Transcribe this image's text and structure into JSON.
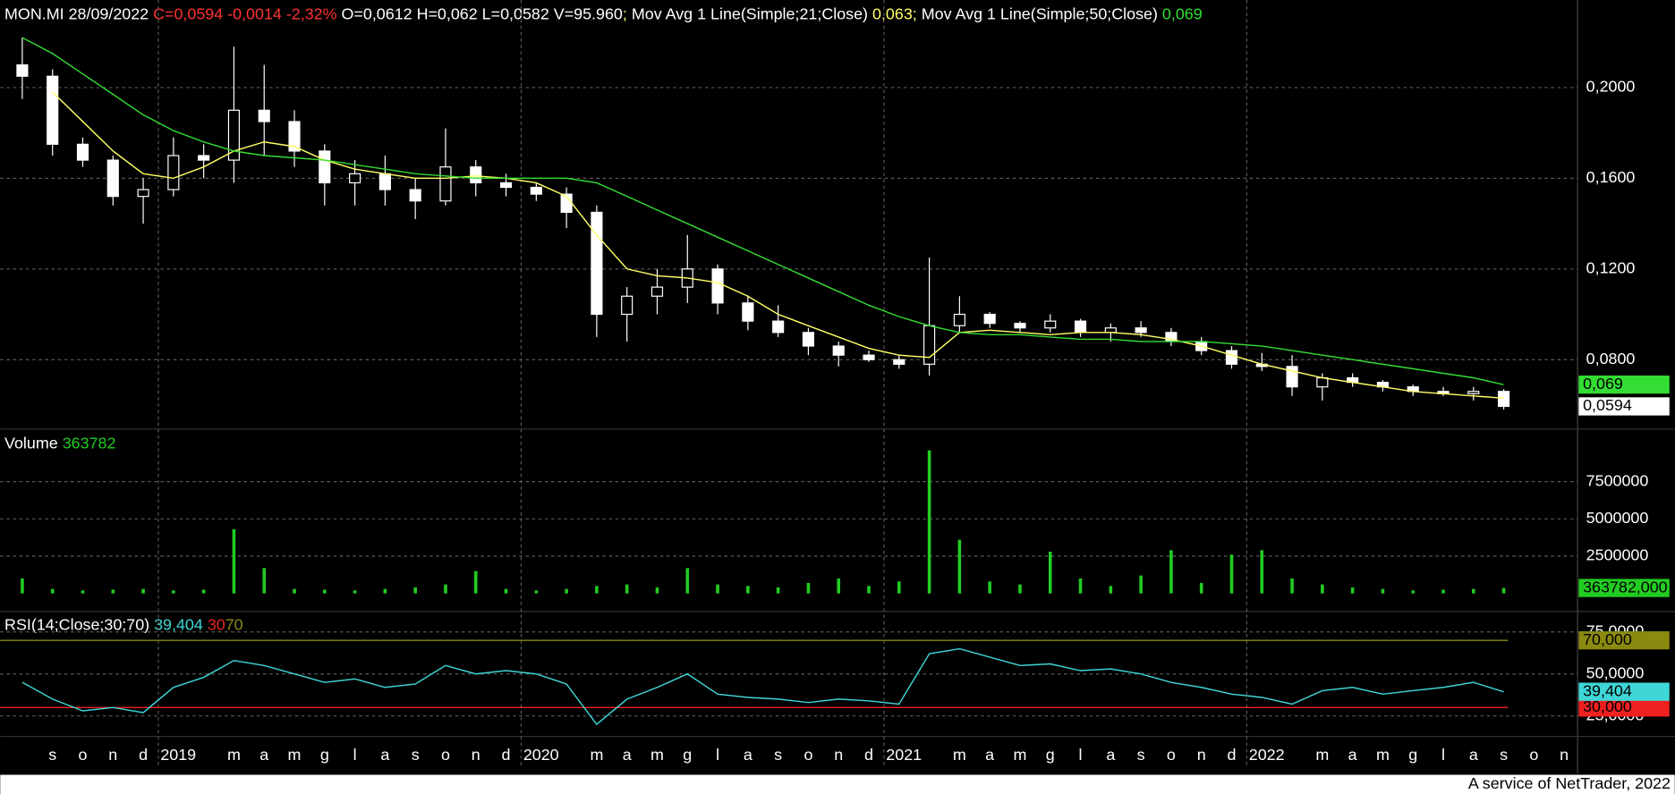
{
  "header": {
    "symbol_date": "MON.MI 28/09/2022",
    "change": "C=0,0594 -0,0014 -2,32%",
    "ohlc": "O=0,0612 H=0,062 L=0,0582 V=95.960",
    "separator": ";",
    "change_color": "#ff3333"
  },
  "chart_data": [
    {
      "type": "candlestick",
      "color": "#ffffff",
      "axis_label": "0,0594",
      "categories": [
        null,
        "s",
        "o",
        "n",
        "d",
        "2019",
        null,
        "m",
        "a",
        "m",
        "g",
        "l",
        "a",
        "s",
        "o",
        "n",
        "d",
        "2020",
        null,
        "m",
        "a",
        "m",
        "g",
        "l",
        "a",
        "s",
        "o",
        "n",
        "d",
        "2021",
        null,
        "m",
        "a",
        "m",
        "g",
        "l",
        "a",
        "s",
        "o",
        "n",
        "d",
        "2022",
        null,
        "m",
        "a",
        "m",
        "g",
        "l",
        "a",
        "s",
        "o",
        "n"
      ],
      "open": [
        0.21,
        0.205,
        0.175,
        0.168,
        0.152,
        0.155,
        0.17,
        0.168,
        0.19,
        0.185,
        0.172,
        0.158,
        0.162,
        0.155,
        0.15,
        0.165,
        0.158,
        0.156,
        0.153,
        0.145,
        0.1,
        0.108,
        0.112,
        0.12,
        0.105,
        0.097,
        0.092,
        0.086,
        0.082,
        0.08,
        0.078,
        0.095,
        0.1,
        0.096,
        0.094,
        0.097,
        0.092,
        0.094,
        0.092,
        0.088,
        0.084,
        0.078,
        0.077,
        0.068,
        0.072,
        0.07,
        0.068,
        0.066,
        0.065,
        0.066,
        null,
        null
      ],
      "high": [
        0.222,
        0.208,
        0.178,
        0.17,
        0.16,
        0.178,
        0.175,
        0.218,
        0.21,
        0.19,
        0.175,
        0.168,
        0.17,
        0.16,
        0.182,
        0.168,
        0.162,
        0.158,
        0.156,
        0.148,
        0.112,
        0.12,
        0.135,
        0.122,
        0.108,
        0.104,
        0.094,
        0.088,
        0.084,
        0.082,
        0.125,
        0.108,
        0.101,
        0.097,
        0.1,
        0.098,
        0.096,
        0.097,
        0.094,
        0.09,
        0.086,
        0.083,
        0.082,
        0.074,
        0.074,
        0.071,
        0.069,
        0.068,
        0.068,
        0.067,
        null,
        null
      ],
      "low": [
        0.195,
        0.17,
        0.165,
        0.148,
        0.14,
        0.152,
        0.16,
        0.158,
        0.17,
        0.165,
        0.148,
        0.148,
        0.148,
        0.142,
        0.148,
        0.152,
        0.152,
        0.15,
        0.138,
        0.09,
        0.088,
        0.1,
        0.105,
        0.1,
        0.093,
        0.09,
        0.082,
        0.077,
        0.079,
        0.076,
        0.073,
        0.092,
        0.094,
        0.092,
        0.092,
        0.09,
        0.088,
        0.09,
        0.086,
        0.082,
        0.076,
        0.075,
        0.064,
        0.062,
        0.068,
        0.066,
        0.064,
        0.064,
        0.062,
        0.058,
        null,
        null
      ],
      "close": [
        0.205,
        0.175,
        0.168,
        0.152,
        0.155,
        0.17,
        0.168,
        0.19,
        0.185,
        0.172,
        0.158,
        0.162,
        0.155,
        0.15,
        0.165,
        0.158,
        0.156,
        0.153,
        0.145,
        0.1,
        0.108,
        0.112,
        0.12,
        0.105,
        0.097,
        0.092,
        0.086,
        0.082,
        0.08,
        0.078,
        0.095,
        0.1,
        0.096,
        0.094,
        0.097,
        0.092,
        0.094,
        0.092,
        0.088,
        0.084,
        0.078,
        0.077,
        0.068,
        0.072,
        0.07,
        0.068,
        0.066,
        0.065,
        0.066,
        0.0594,
        null,
        null
      ],
      "series": [
        {
          "name": "Mov Avg 1 Line(Simple;21;Close)",
          "color": "#ffff66",
          "last_label": "0,063",
          "values": [
            null,
            0.198,
            0.185,
            0.172,
            0.162,
            0.16,
            0.165,
            0.172,
            0.176,
            0.174,
            0.168,
            0.164,
            0.162,
            0.16,
            0.16,
            0.161,
            0.16,
            0.158,
            0.152,
            0.135,
            0.12,
            0.117,
            0.116,
            0.114,
            0.108,
            0.1,
            0.095,
            0.09,
            0.085,
            0.082,
            0.081,
            0.092,
            0.093,
            0.092,
            0.091,
            0.092,
            0.092,
            0.091,
            0.089,
            0.086,
            0.082,
            0.078,
            0.075,
            0.072,
            0.07,
            0.068,
            0.066,
            0.065,
            0.064,
            0.063,
            null,
            null
          ]
        },
        {
          "name": "Mov Avg 1 Line(Simple;50;Close)",
          "color": "#33dd33",
          "last_label": "0,069",
          "axis_label": "0,069",
          "values": [
            0.222,
            0.215,
            0.206,
            0.197,
            0.188,
            0.181,
            0.176,
            0.172,
            0.17,
            0.169,
            0.168,
            0.166,
            0.164,
            0.162,
            0.161,
            0.16,
            0.16,
            0.16,
            0.16,
            0.158,
            0.152,
            0.146,
            0.14,
            0.134,
            0.128,
            0.122,
            0.116,
            0.11,
            0.104,
            0.099,
            0.095,
            0.092,
            0.091,
            0.091,
            0.09,
            0.089,
            0.089,
            0.088,
            0.088,
            0.088,
            0.087,
            0.086,
            0.084,
            0.082,
            0.08,
            0.078,
            0.076,
            0.074,
            0.072,
            0.069,
            null,
            null
          ]
        }
      ],
      "ylim": [
        0.0513,
        0.2245
      ],
      "yticks": [
        {
          "value": 0.08,
          "label": "0,0800"
        },
        {
          "value": 0.12,
          "label": "0,1200"
        },
        {
          "value": 0.16,
          "label": "0,1600"
        },
        {
          "value": 0.2,
          "label": "0,2000"
        }
      ],
      "grid": true
    },
    {
      "type": "bar",
      "title": "Volume",
      "color": "#22cc22",
      "legend_label": "363782",
      "axis_label": "363782,000",
      "values": [
        1000000,
        300000,
        200000,
        250000,
        300000,
        200000,
        250000,
        4300000,
        1700000,
        300000,
        250000,
        200000,
        300000,
        400000,
        600000,
        1500000,
        300000,
        200000,
        300000,
        500000,
        600000,
        400000,
        1700000,
        600000,
        500000,
        400000,
        700000,
        1000000,
        500000,
        800000,
        9600000,
        3600000,
        800000,
        600000,
        2800000,
        1000000,
        500000,
        1200000,
        2900000,
        700000,
        2600000,
        2900000,
        1000000,
        600000,
        400000,
        300000,
        200000,
        250000,
        300000,
        363782,
        null,
        null
      ],
      "ylim": [
        -1000000,
        10600000
      ],
      "yticks": [
        2500000,
        5000000,
        7500000
      ],
      "grid": true
    },
    {
      "type": "line",
      "title": "RSI(14;Close;30;70)",
      "color": "#3fd6d6",
      "last_label": "39,404",
      "values": [
        45,
        35,
        28,
        30,
        27,
        42,
        48,
        58,
        55,
        50,
        45,
        47,
        42,
        44,
        55,
        50,
        52,
        50,
        44,
        20,
        35,
        42,
        50,
        38,
        36,
        35,
        33,
        35,
        34,
        32,
        62,
        65,
        60,
        55,
        56,
        52,
        53,
        50,
        45,
        42,
        38,
        36,
        32,
        40,
        42,
        38,
        40,
        42,
        45,
        39.404,
        null,
        null
      ],
      "levels": [
        {
          "value": 30,
          "label": "30",
          "axis_label": "30,000",
          "color": "#ee2020"
        },
        {
          "value": 70,
          "label": "70",
          "axis_label": "70,000",
          "color": "#8a8a10"
        }
      ],
      "ylim": [
        14.1,
        84
      ],
      "yticks": [
        {
          "value": 25,
          "label": "25,0000"
        },
        {
          "value": 50,
          "label": "50,0000"
        },
        {
          "value": 75,
          "label": "75,0000"
        }
      ],
      "grid": true
    }
  ],
  "footer": "A service of NetTrader, 2022"
}
